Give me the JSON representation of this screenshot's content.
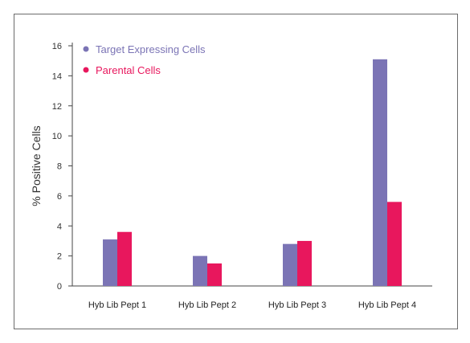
{
  "chart_data": {
    "type": "bar",
    "title": "",
    "xlabel": "",
    "ylabel": "% Positive Cells",
    "ylim": [
      0,
      16
    ],
    "yticks": [
      0,
      2,
      4,
      6,
      8,
      10,
      12,
      14,
      16
    ],
    "grid": false,
    "legend_position": "top-left",
    "categories": [
      "Hyb Lib Pept 1",
      "Hyb Lib Pept 2",
      "Hyb Lib Pept 3",
      "Hyb Lib Pept 4"
    ],
    "series": [
      {
        "name": "Target Expressing Cells",
        "color": "#7b74b5",
        "values": [
          3.1,
          2.0,
          2.8,
          15.1
        ]
      },
      {
        "name": "Parental Cells",
        "color": "#e8175d",
        "values": [
          3.6,
          1.5,
          3.0,
          5.6
        ]
      }
    ]
  }
}
